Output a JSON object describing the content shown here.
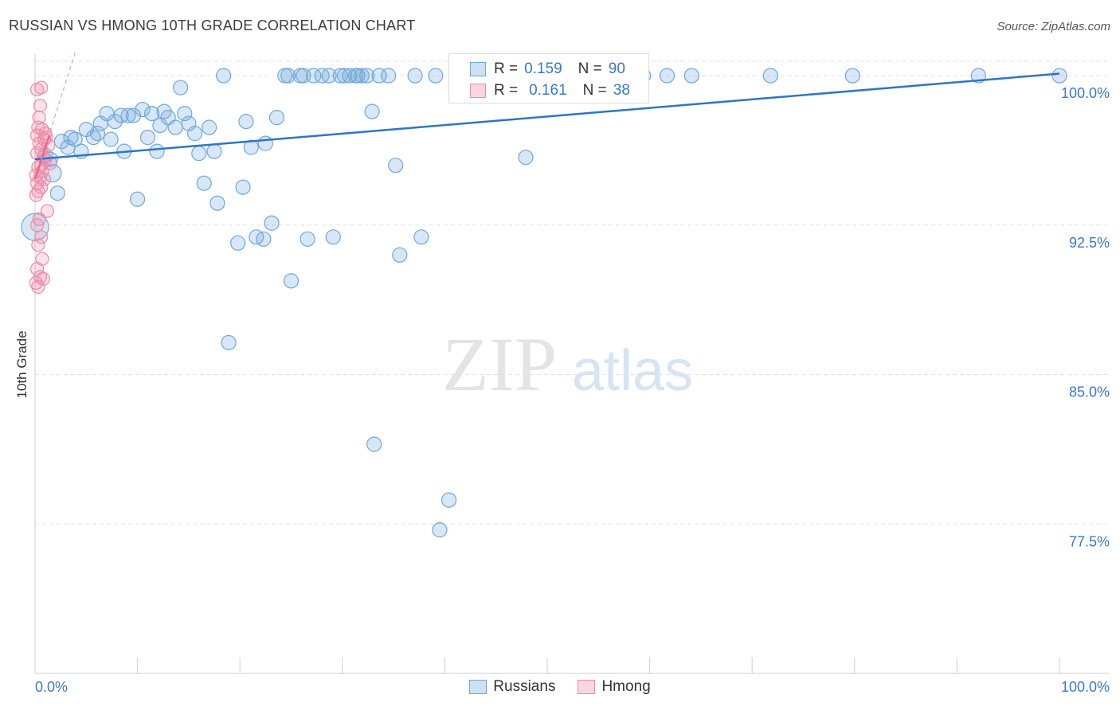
{
  "title": "RUSSIAN VS HMONG 10TH GRADE CORRELATION CHART",
  "source": "Source: ZipAtlas.com",
  "watermark": {
    "zip": "ZIP",
    "atlas": "atlas"
  },
  "colors": {
    "blue": "#6fa8dc",
    "blue_fill": "rgba(111,168,220,0.28)",
    "blue_line": "#2f74c9",
    "blue_text": "#3a78c9",
    "pink": "#f08aa8",
    "pink_fill": "rgba(240,138,168,0.25)",
    "pink_line": "#e76a93",
    "pink_text": "#3a78c9",
    "grid": "#e2e2e2",
    "axis_text": "#3a78c9"
  },
  "stats": [
    {
      "r_label": "R =",
      "r_value": "0.159",
      "n_label": "N =",
      "n_value": "90"
    },
    {
      "r_label": "R =",
      "r_value": "0.161",
      "n_label": "N =",
      "n_value": "38"
    }
  ],
  "legend": [
    "Russians",
    "Hmong"
  ],
  "chart_data": {
    "type": "scatter",
    "title": "RUSSIAN VS HMONG 10TH GRADE CORRELATION CHART",
    "xlabel": "",
    "ylabel": "10th Grade",
    "xlim": [
      0,
      100
    ],
    "ylim": [
      70,
      101
    ],
    "x_tick_labels": [
      "0.0%",
      "100.0%"
    ],
    "y_ticks": [
      100,
      92.5,
      85,
      77.5
    ],
    "y_tick_labels": [
      "100.0%",
      "92.5%",
      "85.0%",
      "77.5%"
    ],
    "grid": true,
    "series": [
      {
        "name": "Russians",
        "trend": {
          "x0": 0,
          "y0": 95.8,
          "x1": 100,
          "y1": 100.1
        },
        "points": [
          [
            0.0,
            92.4
          ],
          [
            1.0,
            96.0
          ],
          [
            1.5,
            95.8
          ],
          [
            1.7,
            95.1
          ],
          [
            2.2,
            94.1
          ],
          [
            2.6,
            96.7
          ],
          [
            3.2,
            96.4
          ],
          [
            3.5,
            96.9
          ],
          [
            3.9,
            96.8
          ],
          [
            4.5,
            96.2
          ],
          [
            5.0,
            97.3
          ],
          [
            5.7,
            96.9
          ],
          [
            6.1,
            97.1
          ],
          [
            6.4,
            97.6
          ],
          [
            7.0,
            98.1
          ],
          [
            7.4,
            96.8
          ],
          [
            7.8,
            97.7
          ],
          [
            8.4,
            98.0
          ],
          [
            8.7,
            96.2
          ],
          [
            9.1,
            98.0
          ],
          [
            9.6,
            98.0
          ],
          [
            10.0,
            93.8
          ],
          [
            10.5,
            98.3
          ],
          [
            11.0,
            96.9
          ],
          [
            11.4,
            98.1
          ],
          [
            11.9,
            96.2
          ],
          [
            12.2,
            97.5
          ],
          [
            12.6,
            98.2
          ],
          [
            13.0,
            97.9
          ],
          [
            13.7,
            97.4
          ],
          [
            14.2,
            99.4
          ],
          [
            14.6,
            98.1
          ],
          [
            15.0,
            97.6
          ],
          [
            15.6,
            97.1
          ],
          [
            16.0,
            96.1
          ],
          [
            16.5,
            94.6
          ],
          [
            17.0,
            97.4
          ],
          [
            17.5,
            96.2
          ],
          [
            17.8,
            93.6
          ],
          [
            18.4,
            100.0
          ],
          [
            18.9,
            86.6
          ],
          [
            19.8,
            91.6
          ],
          [
            20.3,
            94.4
          ],
          [
            20.6,
            97.7
          ],
          [
            21.1,
            96.4
          ],
          [
            21.6,
            91.9
          ],
          [
            22.3,
            91.8
          ],
          [
            22.5,
            96.6
          ],
          [
            23.1,
            92.6
          ],
          [
            23.6,
            97.9
          ],
          [
            24.4,
            100.0
          ],
          [
            24.7,
            100.0
          ],
          [
            25.0,
            89.7
          ],
          [
            25.9,
            100.0
          ],
          [
            26.2,
            100.0
          ],
          [
            26.6,
            91.8
          ],
          [
            27.2,
            100.0
          ],
          [
            28.0,
            100.0
          ],
          [
            28.7,
            100.0
          ],
          [
            29.1,
            91.9
          ],
          [
            29.8,
            100.0
          ],
          [
            30.2,
            100.0
          ],
          [
            30.7,
            100.0
          ],
          [
            31.3,
            100.0
          ],
          [
            31.5,
            100.0
          ],
          [
            31.9,
            100.0
          ],
          [
            32.4,
            100.0
          ],
          [
            32.9,
            98.2
          ],
          [
            33.1,
            81.5
          ],
          [
            33.6,
            100.0
          ],
          [
            34.5,
            100.0
          ],
          [
            35.2,
            95.5
          ],
          [
            35.6,
            91.0
          ],
          [
            37.1,
            100.0
          ],
          [
            37.7,
            91.9
          ],
          [
            39.1,
            100.0
          ],
          [
            39.5,
            77.2
          ],
          [
            40.4,
            78.7
          ],
          [
            41.3,
            100.0
          ],
          [
            43.4,
            100.0
          ],
          [
            45.3,
            100.0
          ],
          [
            47.9,
            95.9
          ],
          [
            51.9,
            100.0
          ],
          [
            59.4,
            100.0
          ],
          [
            61.7,
            100.0
          ],
          [
            64.1,
            100.0
          ],
          [
            71.8,
            100.0
          ],
          [
            79.8,
            100.0
          ],
          [
            92.1,
            100.0
          ],
          [
            100.0,
            100.0
          ]
        ]
      },
      {
        "name": "Hmong",
        "trend": {
          "x0": 0,
          "y0": 94.8,
          "x1": 1.4,
          "y1": 97.0
        },
        "trend_ext": {
          "x0": 0,
          "y0": 94.8,
          "x1": 4.0,
          "y1": 101.3
        },
        "points": [
          [
            0.2,
            99.3
          ],
          [
            0.6,
            99.4
          ],
          [
            0.5,
            98.5
          ],
          [
            0.4,
            97.9
          ],
          [
            0.3,
            97.4
          ],
          [
            0.7,
            97.3
          ],
          [
            0.2,
            97.0
          ],
          [
            1.1,
            96.9
          ],
          [
            0.9,
            96.8
          ],
          [
            0.4,
            96.6
          ],
          [
            1.3,
            96.5
          ],
          [
            0.6,
            96.3
          ],
          [
            0.2,
            96.1
          ],
          [
            0.8,
            95.9
          ],
          [
            1.0,
            95.8
          ],
          [
            1.5,
            95.6
          ],
          [
            0.3,
            95.4
          ],
          [
            0.7,
            95.2
          ],
          [
            0.1,
            95.0
          ],
          [
            0.5,
            94.9
          ],
          [
            0.9,
            94.8
          ],
          [
            0.2,
            94.6
          ],
          [
            0.6,
            94.4
          ],
          [
            0.3,
            94.2
          ],
          [
            0.1,
            94.0
          ],
          [
            1.2,
            93.2
          ],
          [
            0.4,
            92.8
          ],
          [
            0.2,
            92.5
          ],
          [
            0.6,
            91.9
          ],
          [
            0.3,
            91.5
          ],
          [
            0.7,
            90.8
          ],
          [
            0.2,
            90.3
          ],
          [
            0.5,
            89.9
          ],
          [
            0.8,
            89.8
          ],
          [
            0.1,
            89.6
          ],
          [
            0.3,
            89.4
          ],
          [
            0.6,
            95.5
          ],
          [
            1.0,
            97.1
          ]
        ]
      }
    ]
  }
}
